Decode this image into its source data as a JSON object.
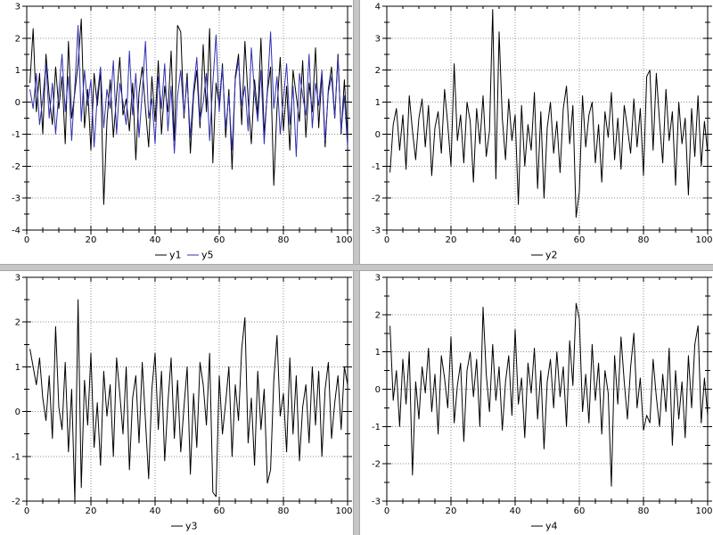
{
  "window": {
    "background_color": "#c6c6c6",
    "panel_background": "#ffffff",
    "grid_color": "#8f8f8f"
  },
  "chart_data": [
    {
      "type": "line",
      "panel": "top-left",
      "title": "",
      "xlabel": "",
      "ylabel": "",
      "x_range": [
        0,
        100
      ],
      "y_range": [
        -4,
        3
      ],
      "x_major_ticks": [
        0,
        20,
        40,
        60,
        80,
        100
      ],
      "y_major_ticks": [
        -4,
        -3,
        -2,
        -1,
        0,
        1,
        2,
        3
      ],
      "x_minor_step": 5,
      "y_minor_step": 0.5,
      "grid": "dotted",
      "legend_position": "bottom",
      "x_start": 1,
      "x_step": 1,
      "series": [
        {
          "name": "y1",
          "color": "#000000",
          "values": [
            0.6,
            2.3,
            -0.3,
            0.9,
            -1.0,
            1.5,
            0.2,
            -0.7,
            1.1,
            -0.2,
            0.8,
            -1.3,
            1.9,
            -0.5,
            0.3,
            1.2,
            2.6,
            -0.8,
            0.4,
            -1.5,
            0.9,
            -0.1,
            1.0,
            -3.2,
            -0.6,
            0.7,
            -1.1,
            0.2,
            1.4,
            -0.4,
            0.1,
            -0.9,
            0.6,
            -1.8,
            0.3,
            1.1,
            -0.2,
            -1.4,
            0.8,
            -0.6,
            1.3,
            -1.0,
            0.5,
            -0.3,
            1.6,
            -1.2,
            2.4,
            2.2,
            -0.5,
            0.9,
            -1.6,
            0.2,
            1.0,
            -0.8,
            1.8,
            -0.3,
            2.3,
            -1.9,
            0.6,
            -0.1,
            1.2,
            -1.1,
            0.4,
            -2.1,
            0.8,
            1.5,
            -0.7,
            1.9,
            0.1,
            -1.3,
            0.7,
            -0.4,
            2.0,
            -1.0,
            0.3,
            1.1,
            -2.6,
            -0.2,
            1.4,
            -0.9,
            0.5,
            -1.5,
            1.0,
            0.2,
            -0.6,
            1.3,
            -1.1,
            0.6,
            -0.3,
            1.7,
            -0.8,
            0.9,
            -1.4,
            0.4,
            1.1,
            -0.5,
            1.5,
            -1.0,
            0.7,
            -1.2
          ]
        },
        {
          "name": "y5",
          "color": "#3030b0",
          "values": [
            0.4,
            -0.2,
            0.9,
            -0.7,
            0.1,
            1.2,
            -0.5,
            0.6,
            -1.0,
            0.3,
            1.5,
            -0.3,
            0.8,
            -1.2,
            0.5,
            2.4,
            -0.6,
            1.0,
            -0.1,
            0.7,
            -1.4,
            0.2,
            1.1,
            -0.8,
            0.4,
            -0.2,
            1.3,
            -1.0,
            0.6,
            0.0,
            -0.7,
            1.6,
            -0.4,
            0.9,
            -1.1,
            0.3,
            1.9,
            -0.5,
            0.1,
            -1.3,
            0.8,
            -0.2,
            1.2,
            -0.9,
            0.5,
            -1.6,
            0.2,
            1.0,
            -0.4,
            0.7,
            -1.1,
            0.4,
            1.4,
            -0.6,
            0.0,
            0.9,
            -1.2,
            0.6,
            2.1,
            -0.3,
            1.1,
            -0.8,
            0.2,
            -1.5,
            0.7,
            1.3,
            -0.1,
            0.5,
            -0.9,
            1.7,
            0.3,
            -0.6,
            1.0,
            -1.3,
            0.4,
            2.2,
            -0.2,
            0.8,
            -1.0,
            0.1,
            1.2,
            -0.7,
            0.5,
            -1.7,
            0.9,
            0.2,
            -0.4,
            1.5,
            -0.8,
            0.6,
            -0.1,
            1.0,
            -1.2,
            0.3,
            0.8,
            -0.5,
            1.4,
            -0.9,
            0.2,
            -1.4
          ]
        }
      ]
    },
    {
      "type": "line",
      "panel": "top-right",
      "title": "",
      "xlabel": "",
      "ylabel": "",
      "x_range": [
        0,
        100
      ],
      "y_range": [
        -3,
        4
      ],
      "x_major_ticks": [
        0,
        20,
        40,
        60,
        80,
        100
      ],
      "y_major_ticks": [
        -3,
        -2,
        -1,
        0,
        1,
        2,
        3,
        4
      ],
      "x_minor_step": 5,
      "y_minor_step": 0.5,
      "grid": "dotted",
      "legend_position": "bottom",
      "x_start": 1,
      "x_step": 1,
      "series": [
        {
          "name": "y2",
          "color": "#000000",
          "values": [
            -1.2,
            0.3,
            0.8,
            -0.5,
            0.6,
            -1.1,
            1.2,
            0.1,
            -0.8,
            0.5,
            1.1,
            -0.4,
            0.9,
            -1.3,
            0.2,
            0.7,
            -0.6,
            1.4,
            0.3,
            -1.0,
            2.2,
            -0.2,
            0.6,
            -0.9,
            1.0,
            0.4,
            -1.5,
            0.8,
            -0.3,
            1.2,
            -0.7,
            0.1,
            3.9,
            -1.4,
            3.2,
            0.5,
            -0.8,
            1.1,
            -0.2,
            0.6,
            -2.2,
            0.9,
            -1.0,
            0.3,
            -0.5,
            1.3,
            -1.7,
            0.7,
            -2.0,
            0.2,
            1.0,
            -0.6,
            0.4,
            -1.2,
            0.8,
            1.5,
            -0.3,
            0.9,
            -2.6,
            -1.8,
            1.2,
            -0.4,
            0.6,
            1.0,
            -0.9,
            0.3,
            -1.5,
            0.7,
            -0.1,
            1.3,
            -0.8,
            0.5,
            -1.1,
            0.9,
            0.2,
            -0.6,
            1.1,
            -0.4,
            0.8,
            -1.3,
            1.8,
            2.0,
            -0.5,
            1.9,
            0.4,
            -0.9,
            1.4,
            -0.2,
            0.7,
            -1.6,
            1.0,
            -0.3,
            0.5,
            -1.9,
            0.8,
            -0.7,
            1.2,
            -1.0,
            0.4,
            -0.6
          ]
        }
      ]
    },
    {
      "type": "line",
      "panel": "bottom-left",
      "title": "",
      "xlabel": "",
      "ylabel": "",
      "x_range": [
        0,
        100
      ],
      "y_range": [
        -2,
        3
      ],
      "x_major_ticks": [
        0,
        20,
        40,
        60,
        80,
        100
      ],
      "y_major_ticks": [
        -2,
        -1,
        0,
        1,
        2,
        3
      ],
      "x_minor_step": 5,
      "y_minor_step": 0.5,
      "grid": "dotted",
      "legend_position": "bottom",
      "x_start": 1,
      "x_step": 1,
      "series": [
        {
          "name": "y3",
          "color": "#000000",
          "values": [
            1.4,
            1.0,
            0.6,
            1.2,
            0.3,
            -0.2,
            0.8,
            -0.6,
            1.9,
            0.1,
            -0.4,
            1.1,
            -0.9,
            0.5,
            -2.0,
            2.5,
            -1.7,
            0.7,
            -0.3,
            1.3,
            -0.8,
            0.2,
            -1.2,
            0.9,
            -0.1,
            0.6,
            -1.0,
            1.2,
            0.4,
            -0.5,
            1.0,
            -1.3,
            0.3,
            0.8,
            -0.7,
            1.1,
            -0.2,
            -1.5,
            0.5,
            1.3,
            -0.4,
            0.9,
            -1.1,
            0.2,
            1.2,
            -0.6,
            0.7,
            -0.9,
            0.1,
            1.0,
            -1.4,
            0.4,
            -0.8,
            1.1,
            0.6,
            -0.3,
            1.3,
            -1.8,
            -1.9,
            0.8,
            -0.5,
            0.2,
            1.0,
            -1.0,
            0.6,
            -0.2,
            1.4,
            2.1,
            -0.7,
            0.3,
            -1.2,
            0.9,
            -0.4,
            0.5,
            -1.6,
            -1.3,
            0.7,
            1.7,
            -0.1,
            0.4,
            -0.9,
            1.2,
            -0.5,
            0.8,
            -1.1,
            0.1,
            0.6,
            -0.7,
            1.0,
            -0.3,
            0.9,
            -1.0,
            0.5,
            1.1,
            -0.6,
            0.2,
            0.8,
            -0.4,
            1.0,
            0.6
          ]
        }
      ]
    },
    {
      "type": "line",
      "panel": "bottom-right",
      "title": "",
      "xlabel": "",
      "ylabel": "",
      "x_range": [
        0,
        100
      ],
      "y_range": [
        -3,
        3
      ],
      "x_major_ticks": [
        0,
        20,
        40,
        60,
        80,
        100
      ],
      "y_major_ticks": [
        -3,
        -2,
        -1,
        0,
        1,
        2,
        3
      ],
      "x_minor_step": 5,
      "y_minor_step": 0.5,
      "grid": "dotted",
      "legend_position": "bottom",
      "x_start": 1,
      "x_step": 1,
      "series": [
        {
          "name": "y4",
          "color": "#000000",
          "values": [
            1.7,
            -0.3,
            0.5,
            -1.0,
            0.8,
            -0.4,
            1.0,
            -2.3,
            0.2,
            -0.8,
            0.6,
            -0.1,
            1.1,
            -0.6,
            0.4,
            -1.2,
            0.9,
            0.3,
            -0.5,
            1.4,
            -0.9,
            0.1,
            0.7,
            -1.4,
            0.5,
            1.0,
            -0.2,
            0.8,
            -1.0,
            2.2,
            0.4,
            -0.6,
            1.2,
            -0.3,
            0.6,
            -1.1,
            0.2,
            0.9,
            -0.7,
            1.6,
            -0.4,
            0.3,
            -1.3,
            0.7,
            -0.1,
            1.1,
            -0.8,
            0.5,
            -1.6,
            0.2,
            0.8,
            -0.5,
            1.0,
            -0.2,
            0.6,
            -1.0,
            1.3,
            0.1,
            2.3,
            1.9,
            -0.6,
            0.4,
            -0.9,
            1.2,
            -0.3,
            0.7,
            -1.2,
            0.5,
            -0.1,
            -2.6,
            0.9,
            -0.4,
            1.4,
            0.2,
            -0.8,
            0.6,
            1.5,
            -0.5,
            0.3,
            -1.1,
            -0.7,
            -0.9,
            0.8,
            -0.2,
            -1.0,
            0.4,
            -0.6,
            1.1,
            -1.5,
            0.5,
            -0.8,
            0.2,
            -1.3,
            0.9,
            -0.5,
            1.2,
            1.7,
            -0.9,
            0.3,
            -0.7
          ]
        }
      ]
    }
  ]
}
